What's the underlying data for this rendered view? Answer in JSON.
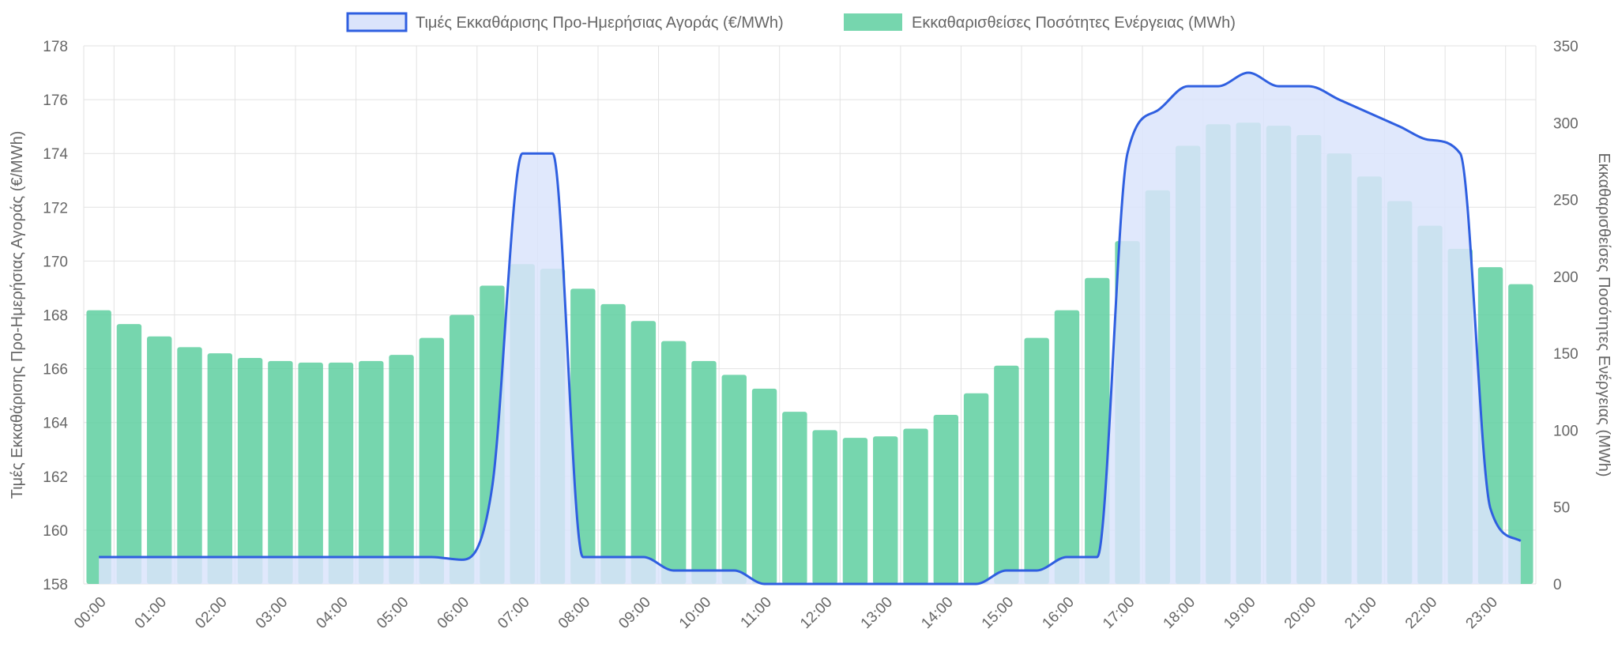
{
  "chart_data": {
    "type": "bar",
    "categories": [
      "00:00",
      "00:30",
      "01:00",
      "01:30",
      "02:00",
      "02:30",
      "03:00",
      "03:30",
      "04:00",
      "04:30",
      "05:00",
      "05:30",
      "06:00",
      "06:30",
      "07:00",
      "07:30",
      "08:00",
      "08:30",
      "09:00",
      "09:30",
      "10:00",
      "10:30",
      "11:00",
      "11:30",
      "12:00",
      "12:30",
      "13:00",
      "13:30",
      "14:00",
      "14:30",
      "15:00",
      "15:30",
      "16:00",
      "16:30",
      "17:00",
      "17:30",
      "18:00",
      "18:30",
      "19:00",
      "19:30",
      "20:00",
      "20:30",
      "21:00",
      "21:30",
      "22:00",
      "22:30",
      "23:00",
      "23:30"
    ],
    "x_tick_labels": [
      "00:00",
      "01:00",
      "02:00",
      "03:00",
      "04:00",
      "05:00",
      "06:00",
      "07:00",
      "08:00",
      "09:00",
      "10:00",
      "11:00",
      "12:00",
      "13:00",
      "14:00",
      "15:00",
      "16:00",
      "17:00",
      "18:00",
      "19:00",
      "20:00",
      "21:00",
      "22:00",
      "23:00"
    ],
    "series": [
      {
        "name": "Τιμές Εκκαθάρισης Προ-Ημερήσιας Αγοράς (€/MWh)",
        "type": "area",
        "axis": "left",
        "color": "#2f5fe0",
        "fill": "#dbe4fb",
        "values": [
          159,
          159,
          159,
          159,
          159,
          159,
          159,
          159,
          159,
          159,
          159,
          159,
          158.9,
          161.6,
          174,
          174,
          159,
          159,
          159,
          158.5,
          158.5,
          158.5,
          158,
          158,
          158,
          158,
          158,
          158,
          158,
          158,
          158.5,
          158.5,
          159,
          159,
          174,
          175.6,
          176.5,
          176.5,
          177,
          176.5,
          176.5,
          176,
          175.5,
          175,
          174.5,
          174,
          160.8,
          159.6
        ]
      },
      {
        "name": "Εκκαθαρισθείσες Ποσότητες Ενέργειας (MWh)",
        "type": "bar",
        "axis": "right",
        "color": "#5ecfa0",
        "values": [
          178,
          169,
          161,
          154,
          150,
          147,
          145,
          144,
          144,
          145,
          149,
          160,
          175,
          194,
          208,
          205,
          192,
          182,
          171,
          158,
          145,
          136,
          127,
          112,
          100,
          95,
          96,
          101,
          110,
          124,
          142,
          160,
          178,
          199,
          223,
          256,
          285,
          299,
          300,
          298,
          292,
          280,
          265,
          249,
          233,
          218,
          206,
          195
        ]
      }
    ],
    "ylabel": "Τιμές Εκκαθάρισης Προ-Ημερήσιας Αγοράς (€/MWh)",
    "ylabel_right": "Εκκαθαρισθείσες Ποσότητες Ενέργειας (MWh)",
    "ylim": [
      158,
      178
    ],
    "y_ticks": [
      158,
      160,
      162,
      164,
      166,
      168,
      170,
      172,
      174,
      176,
      178
    ],
    "ylim_right": [
      0,
      350
    ],
    "y_ticks_right": [
      0,
      50,
      100,
      150,
      200,
      250,
      300,
      350
    ],
    "grid": true,
    "legend_position": "top-center"
  }
}
